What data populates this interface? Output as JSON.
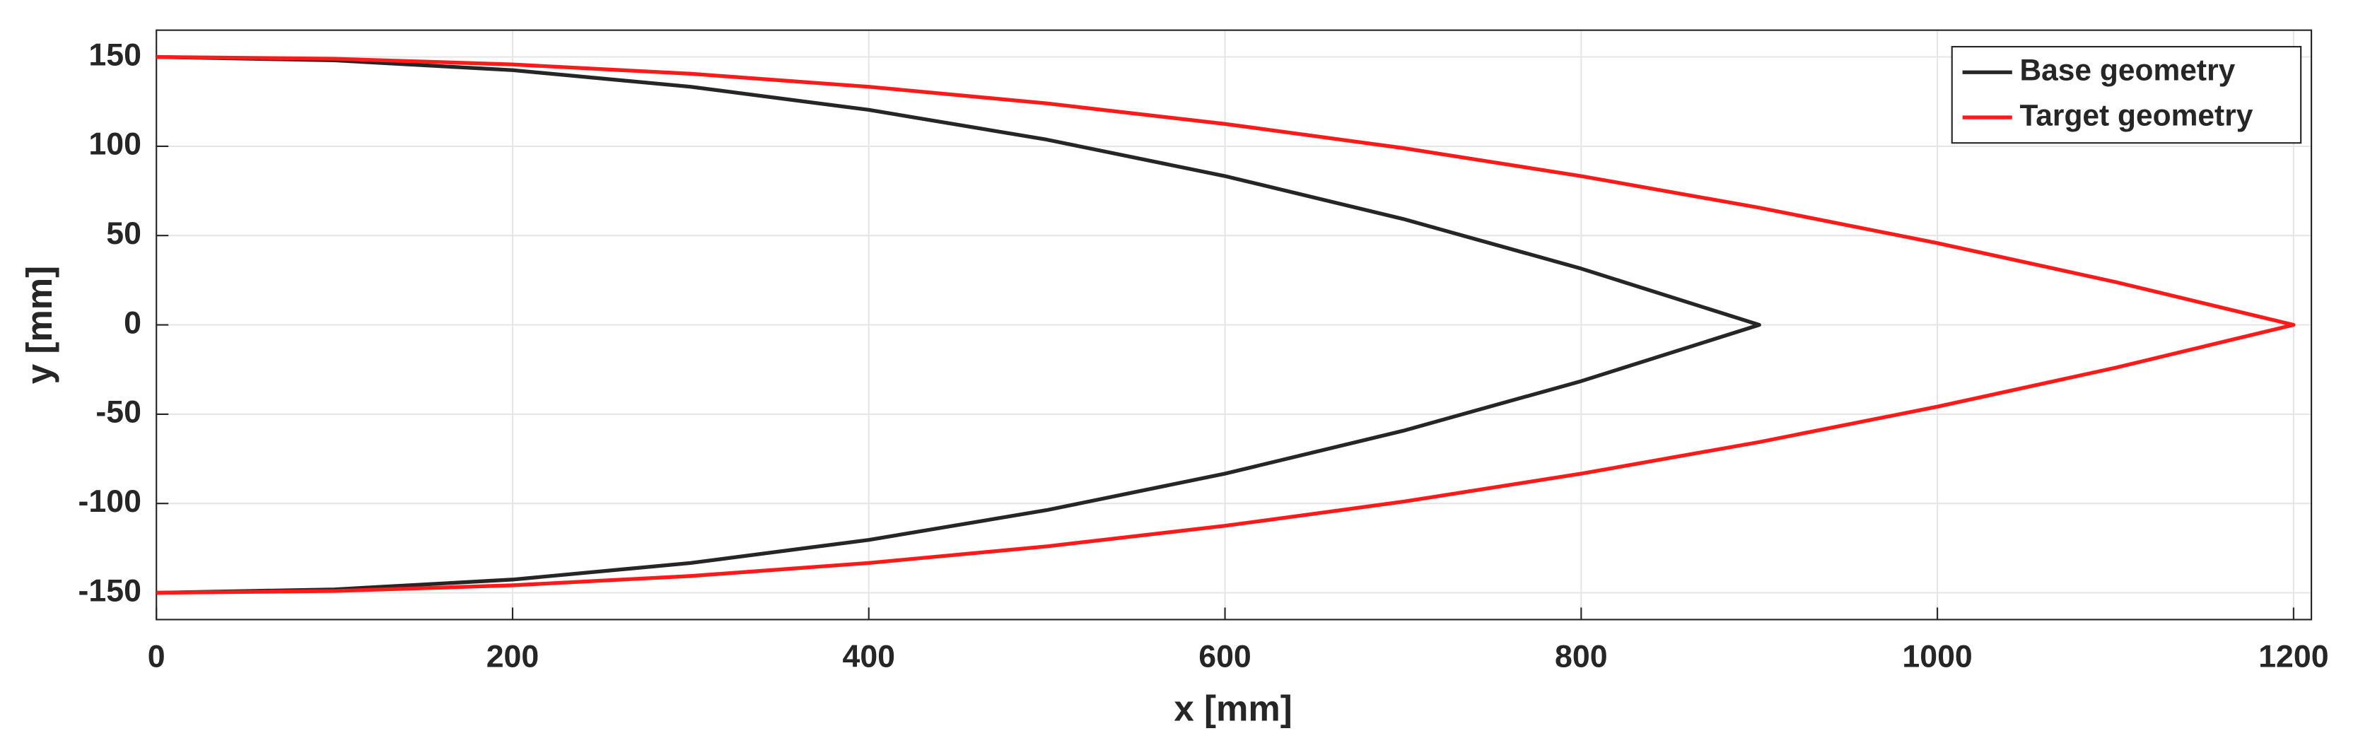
{
  "chart_data": {
    "type": "line",
    "xlabel": "x [mm]",
    "ylabel": "y [mm]",
    "xlim": [
      0,
      1210
    ],
    "ylim": [
      -165,
      165
    ],
    "xticks": [
      0,
      200,
      400,
      600,
      800,
      1000,
      1200
    ],
    "yticks": [
      -150,
      -100,
      -50,
      0,
      50,
      100,
      150
    ],
    "grid": true,
    "legend": "northeast",
    "series": [
      {
        "name": "Base geometry",
        "color": "#262626",
        "x": [
          0,
          100,
          200,
          300,
          400,
          500,
          600,
          700,
          800,
          900,
          800,
          700,
          600,
          500,
          400,
          300,
          200,
          100,
          0
        ],
        "values": [
          150,
          148.1,
          142.6,
          133.3,
          120.4,
          103.7,
          83.3,
          59.3,
          31.5,
          0,
          -31.5,
          -59.3,
          -83.3,
          -103.7,
          -120.4,
          -133.3,
          -142.6,
          -148.1,
          -150
        ]
      },
      {
        "name": "Target geometry",
        "color": "#ff1a1a",
        "x": [
          0,
          100,
          200,
          300,
          400,
          500,
          600,
          700,
          800,
          900,
          1000,
          1100,
          1200,
          1100,
          1000,
          900,
          800,
          700,
          600,
          500,
          400,
          300,
          200,
          100,
          0
        ],
        "values": [
          150,
          149.0,
          145.8,
          140.6,
          133.3,
          124.0,
          112.5,
          99.0,
          83.3,
          65.6,
          45.8,
          24.0,
          0,
          -24.0,
          -45.8,
          -65.6,
          -83.3,
          -99.0,
          -112.5,
          -124.0,
          -133.3,
          -140.6,
          -145.8,
          -149.0,
          -150
        ]
      }
    ]
  }
}
